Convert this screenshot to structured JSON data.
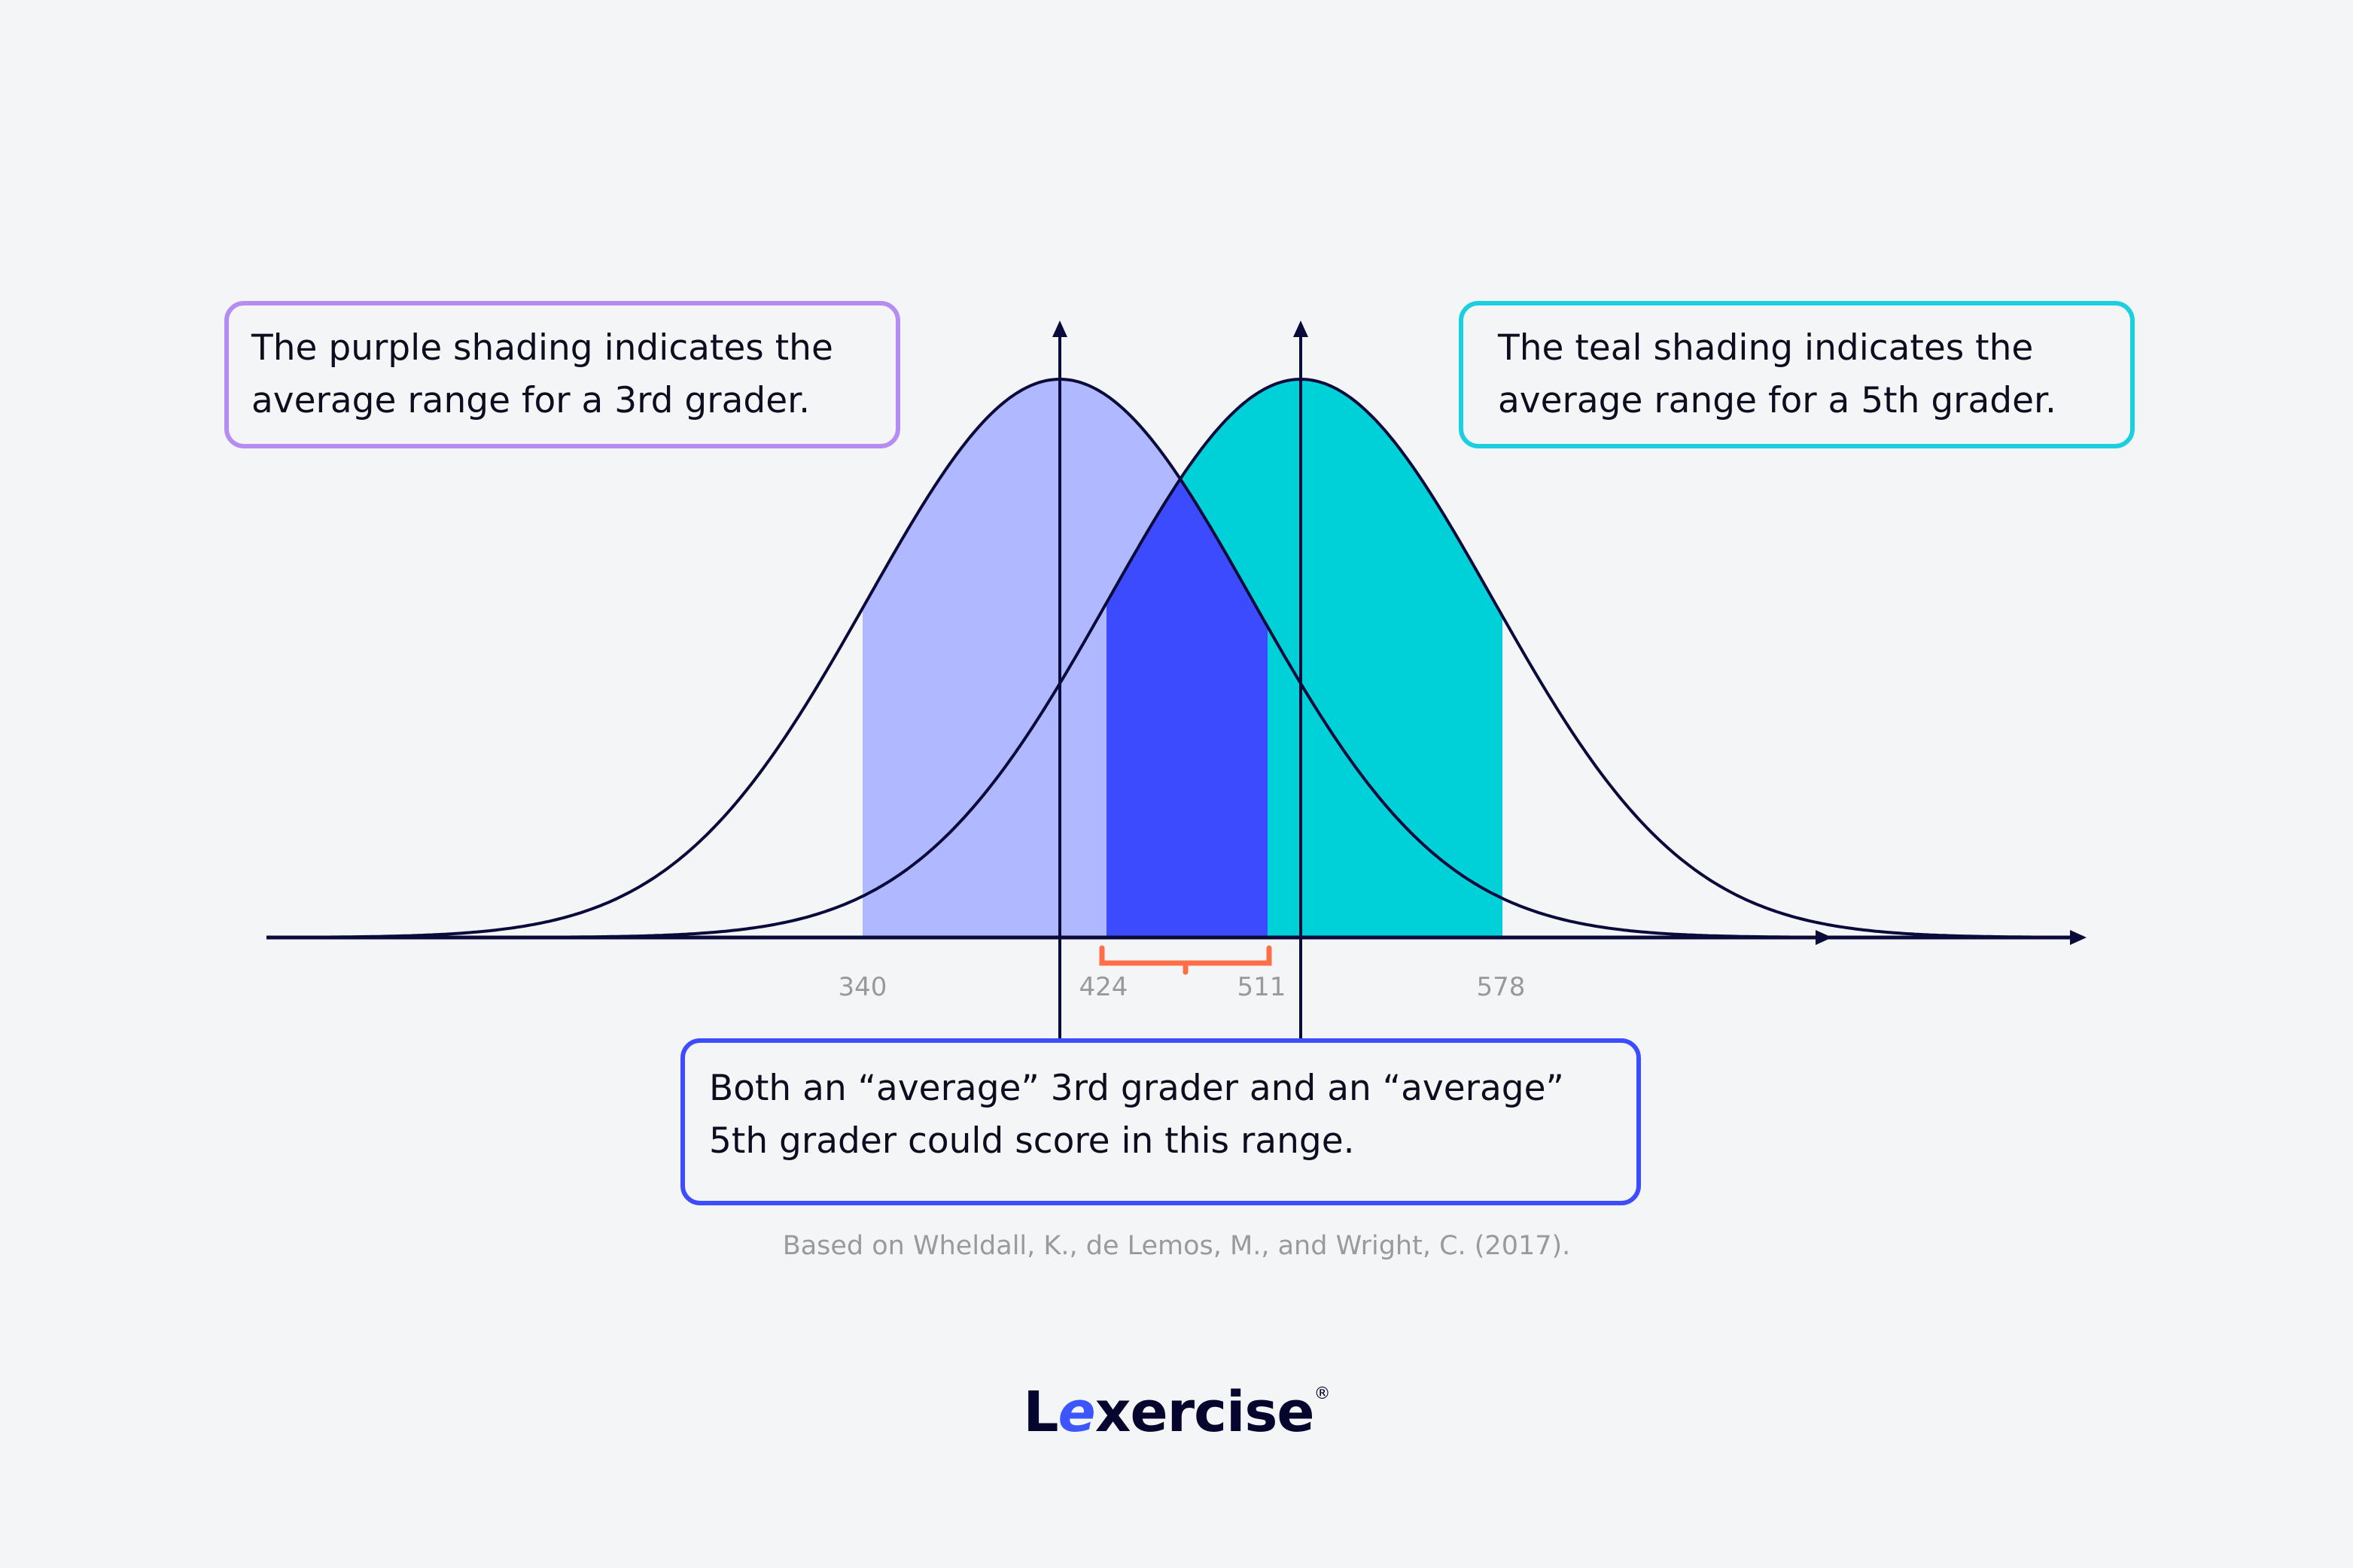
{
  "chart_data": {
    "type": "area",
    "title": "",
    "xlabel": "",
    "ylabel": "",
    "tick_labels": [
      "340",
      "424",
      "511",
      "578"
    ],
    "series": [
      {
        "name": "3rd grader",
        "shaded_range": [
          340,
          511
        ],
        "color": "#b0b8ff"
      },
      {
        "name": "5th grader",
        "shaded_range": [
          424,
          578
        ],
        "color": "#00d0d8"
      }
    ],
    "overlap": {
      "range": [
        424,
        511
      ],
      "color": "#3d4bff"
    },
    "annotations": {
      "purple": "The purple shading indicates the average range for a 3rd grader.",
      "teal": "The teal shading indicates the average range for a 5th grader.",
      "overlap": "Both an “average” 3rd grader and an “average” 5th grader could score in this range."
    },
    "bracket_color": "#ff6e47"
  },
  "source": "Based on Wheldall, K., de Lemos, M., and Wright, C. (2017).",
  "logo": {
    "pre": "L",
    "e": "e",
    "post": "xercise",
    "mark": "®"
  }
}
